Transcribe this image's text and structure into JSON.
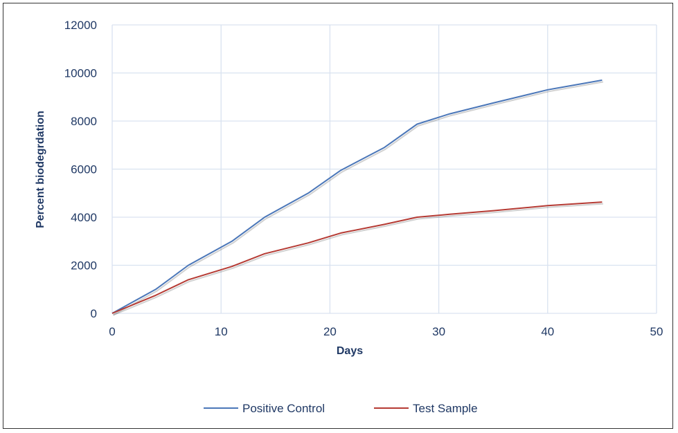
{
  "chart_data": {
    "type": "line",
    "title": "",
    "xlabel": "Days",
    "ylabel": "Percent biodegrdation",
    "xlim": [
      0,
      50
    ],
    "ylim": [
      0,
      12000
    ],
    "xticks": [
      0,
      10,
      20,
      30,
      40,
      50
    ],
    "yticks": [
      0,
      2000,
      4000,
      6000,
      8000,
      10000,
      12000
    ],
    "grid": true,
    "legend_position": "bottom",
    "series": [
      {
        "name": "Positive Control",
        "color": "#4a76b8",
        "x": [
          0,
          4,
          7,
          11,
          14,
          18,
          21,
          25,
          28,
          31,
          35,
          40,
          45
        ],
        "y": [
          0,
          1000,
          2000,
          3000,
          4000,
          5000,
          5950,
          6900,
          7870,
          8300,
          8750,
          9300,
          9700
        ]
      },
      {
        "name": "Test Sample",
        "color": "#b53a33",
        "x": [
          0,
          4,
          7,
          11,
          14,
          18,
          21,
          25,
          28,
          31,
          35,
          40,
          45
        ],
        "y": [
          0,
          750,
          1400,
          1950,
          2480,
          2930,
          3340,
          3700,
          4000,
          4120,
          4270,
          4480,
          4630
        ]
      }
    ]
  }
}
